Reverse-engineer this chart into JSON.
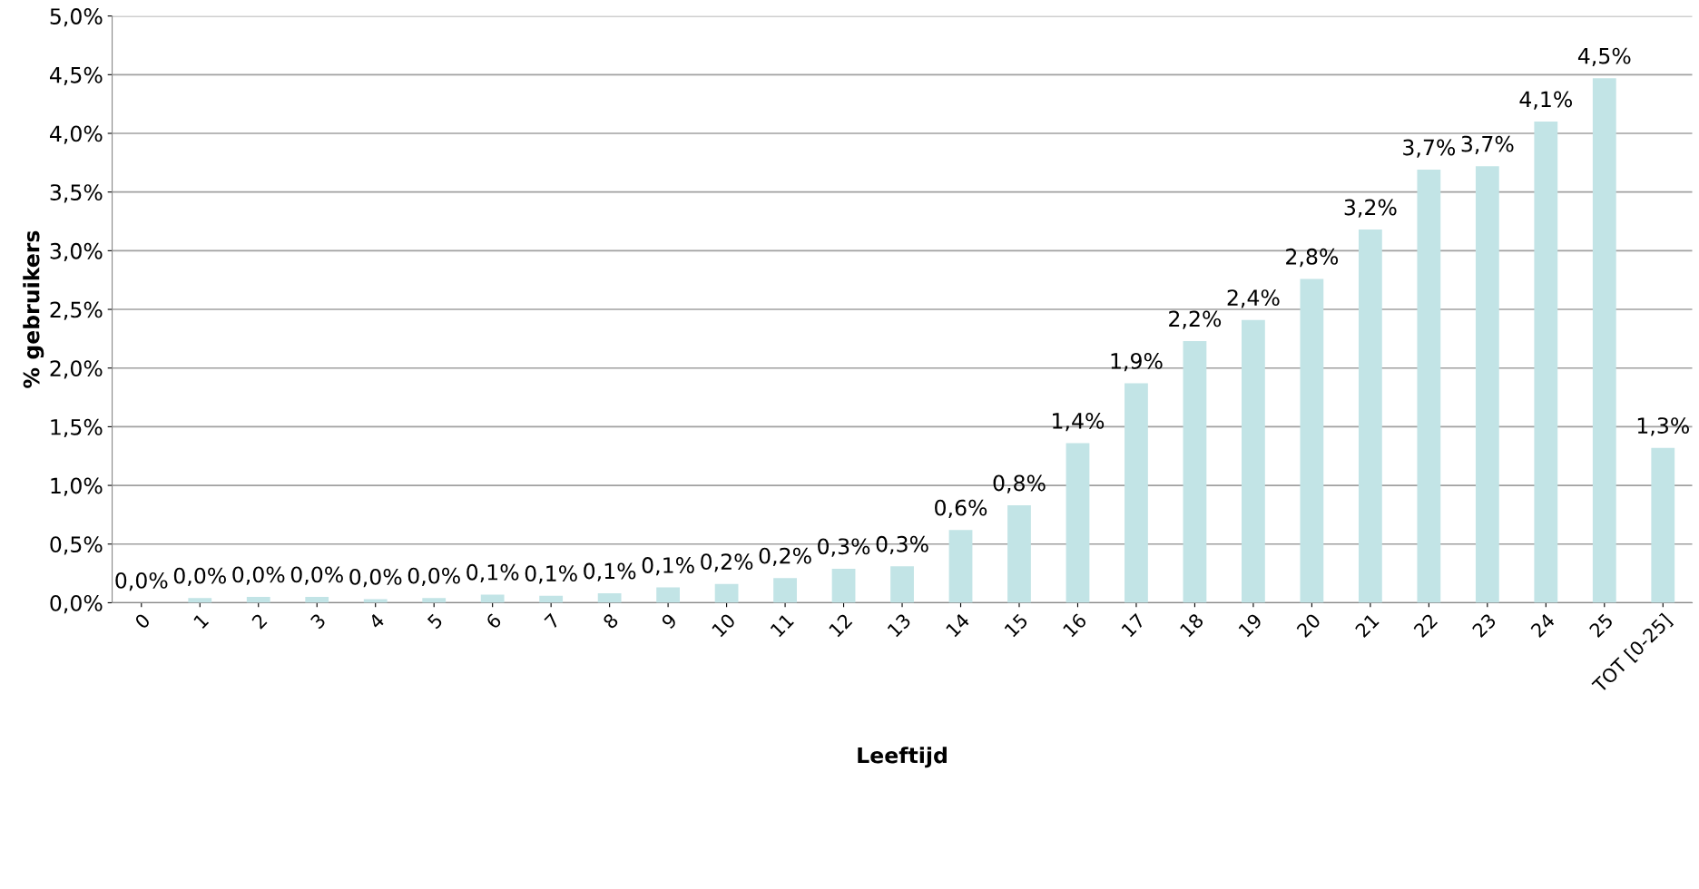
{
  "chart_data": {
    "type": "bar",
    "xlabel": "Leeftijd",
    "ylabel": "% gebruikers",
    "categories": [
      "0",
      "1",
      "2",
      "3",
      "4",
      "5",
      "6",
      "7",
      "8",
      "9",
      "10",
      "11",
      "12",
      "13",
      "14",
      "15",
      "16",
      "17",
      "18",
      "19",
      "20",
      "21",
      "22",
      "23",
      "24",
      "25",
      "TOT [0-25]"
    ],
    "values": [
      0.0,
      0.04,
      0.05,
      0.05,
      0.03,
      0.04,
      0.07,
      0.06,
      0.08,
      0.13,
      0.16,
      0.21,
      0.29,
      0.31,
      0.62,
      0.83,
      1.36,
      1.87,
      2.23,
      2.41,
      2.76,
      3.18,
      3.69,
      3.72,
      4.1,
      4.47,
      1.32
    ],
    "value_labels": [
      "0,0%",
      "0,0%",
      "0,0%",
      "0,0%",
      "0,0%",
      "0,0%",
      "0,1%",
      "0,1%",
      "0,1%",
      "0,1%",
      "0,2%",
      "0,2%",
      "0,3%",
      "0,3%",
      "0,6%",
      "0,8%",
      "1,4%",
      "1,9%",
      "2,2%",
      "2,4%",
      "2,8%",
      "3,2%",
      "3,7%",
      "3,7%",
      "4,1%",
      "4,5%",
      "1,3%"
    ],
    "color": "#c2e4e6",
    "ylim": [
      0,
      5
    ],
    "yticks": [
      {
        "value": 0,
        "label": "0,0%"
      },
      {
        "value": 0.5,
        "label": "0,5%"
      },
      {
        "value": 1,
        "label": "1,0%"
      },
      {
        "value": 1.5,
        "label": "1,5%"
      },
      {
        "value": 2,
        "label": "2,0%"
      },
      {
        "value": 2.5,
        "label": "2,5%"
      },
      {
        "value": 3,
        "label": "3,0%"
      },
      {
        "value": 3.5,
        "label": "3,5%"
      },
      {
        "value": 4,
        "label": "4,0%"
      },
      {
        "value": 4.5,
        "label": "4,5%"
      },
      {
        "value": 5,
        "label": "5,0%"
      }
    ],
    "grid": "y"
  }
}
